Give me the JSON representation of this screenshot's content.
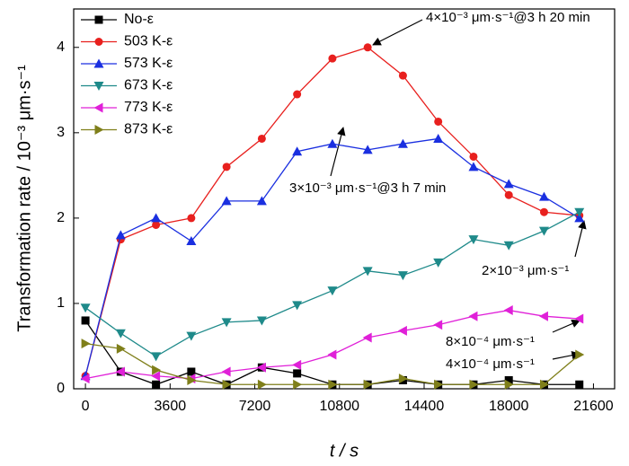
{
  "chart_data": {
    "type": "line",
    "x_label": "t / s",
    "y_label": "Transformation rate / 10⁻³ μm·s⁻¹",
    "xlim": [
      -500,
      22500
    ],
    "xticks": [
      0,
      3600,
      7200,
      10800,
      14400,
      18000,
      21600
    ],
    "ylim": [
      0,
      4.45
    ],
    "yticks": [
      0,
      1,
      2,
      3,
      4
    ],
    "legend": "upper left",
    "x": [
      0,
      1500,
      3000,
      4500,
      6000,
      7500,
      9000,
      10500,
      12000,
      13500,
      15000,
      16500,
      18000,
      19500,
      21000
    ],
    "series": [
      {
        "name": "No-ε",
        "color": "#000000",
        "marker": "square",
        "values": [
          0.8,
          0.2,
          0.05,
          0.2,
          0.05,
          0.25,
          0.18,
          0.05,
          0.05,
          0.1,
          0.05,
          0.05,
          0.1,
          0.05,
          0.05
        ]
      },
      {
        "name": "503 K-ε",
        "color": "#e8201e",
        "marker": "circle",
        "values": [
          0.15,
          1.75,
          1.92,
          2.0,
          2.6,
          2.93,
          3.45,
          3.87,
          4.0,
          3.67,
          3.13,
          2.72,
          2.27,
          2.07,
          2.03
        ]
      },
      {
        "name": "573 K-ε",
        "color": "#1a2fe0",
        "marker": "triangle-up",
        "values": [
          0.15,
          1.8,
          2.0,
          1.73,
          2.2,
          2.2,
          2.78,
          2.87,
          2.8,
          2.87,
          2.93,
          2.6,
          2.4,
          2.25,
          2.0
        ]
      },
      {
        "name": "673 K-ε",
        "color": "#1f8a8a",
        "marker": "triangle-down",
        "values": [
          0.95,
          0.65,
          0.38,
          0.62,
          0.78,
          0.8,
          0.98,
          1.15,
          1.38,
          1.33,
          1.48,
          1.75,
          1.68,
          1.85,
          2.07
        ]
      },
      {
        "name": "773 K-ε",
        "color": "#e020d8",
        "marker": "triangle-left",
        "values": [
          0.12,
          0.2,
          0.15,
          0.12,
          0.2,
          0.25,
          0.28,
          0.4,
          0.6,
          0.68,
          0.75,
          0.85,
          0.92,
          0.85,
          0.82
        ]
      },
      {
        "name": "873 K-ε",
        "color": "#7f7f1a",
        "marker": "triangle-right",
        "values": [
          0.53,
          0.47,
          0.22,
          0.1,
          0.05,
          0.05,
          0.05,
          0.05,
          0.05,
          0.12,
          0.05,
          0.05,
          0.05,
          0.05,
          0.4
        ]
      }
    ],
    "annotations": [
      "4×10⁻³ μm·s⁻¹@3 h 20 min",
      "3×10⁻³ μm·s⁻¹@3 h 7 min",
      "2×10⁻³ μm·s⁻¹",
      "8×10⁻⁴ μm·s⁻¹",
      "4×10⁻⁴ μm·s⁻¹"
    ]
  }
}
